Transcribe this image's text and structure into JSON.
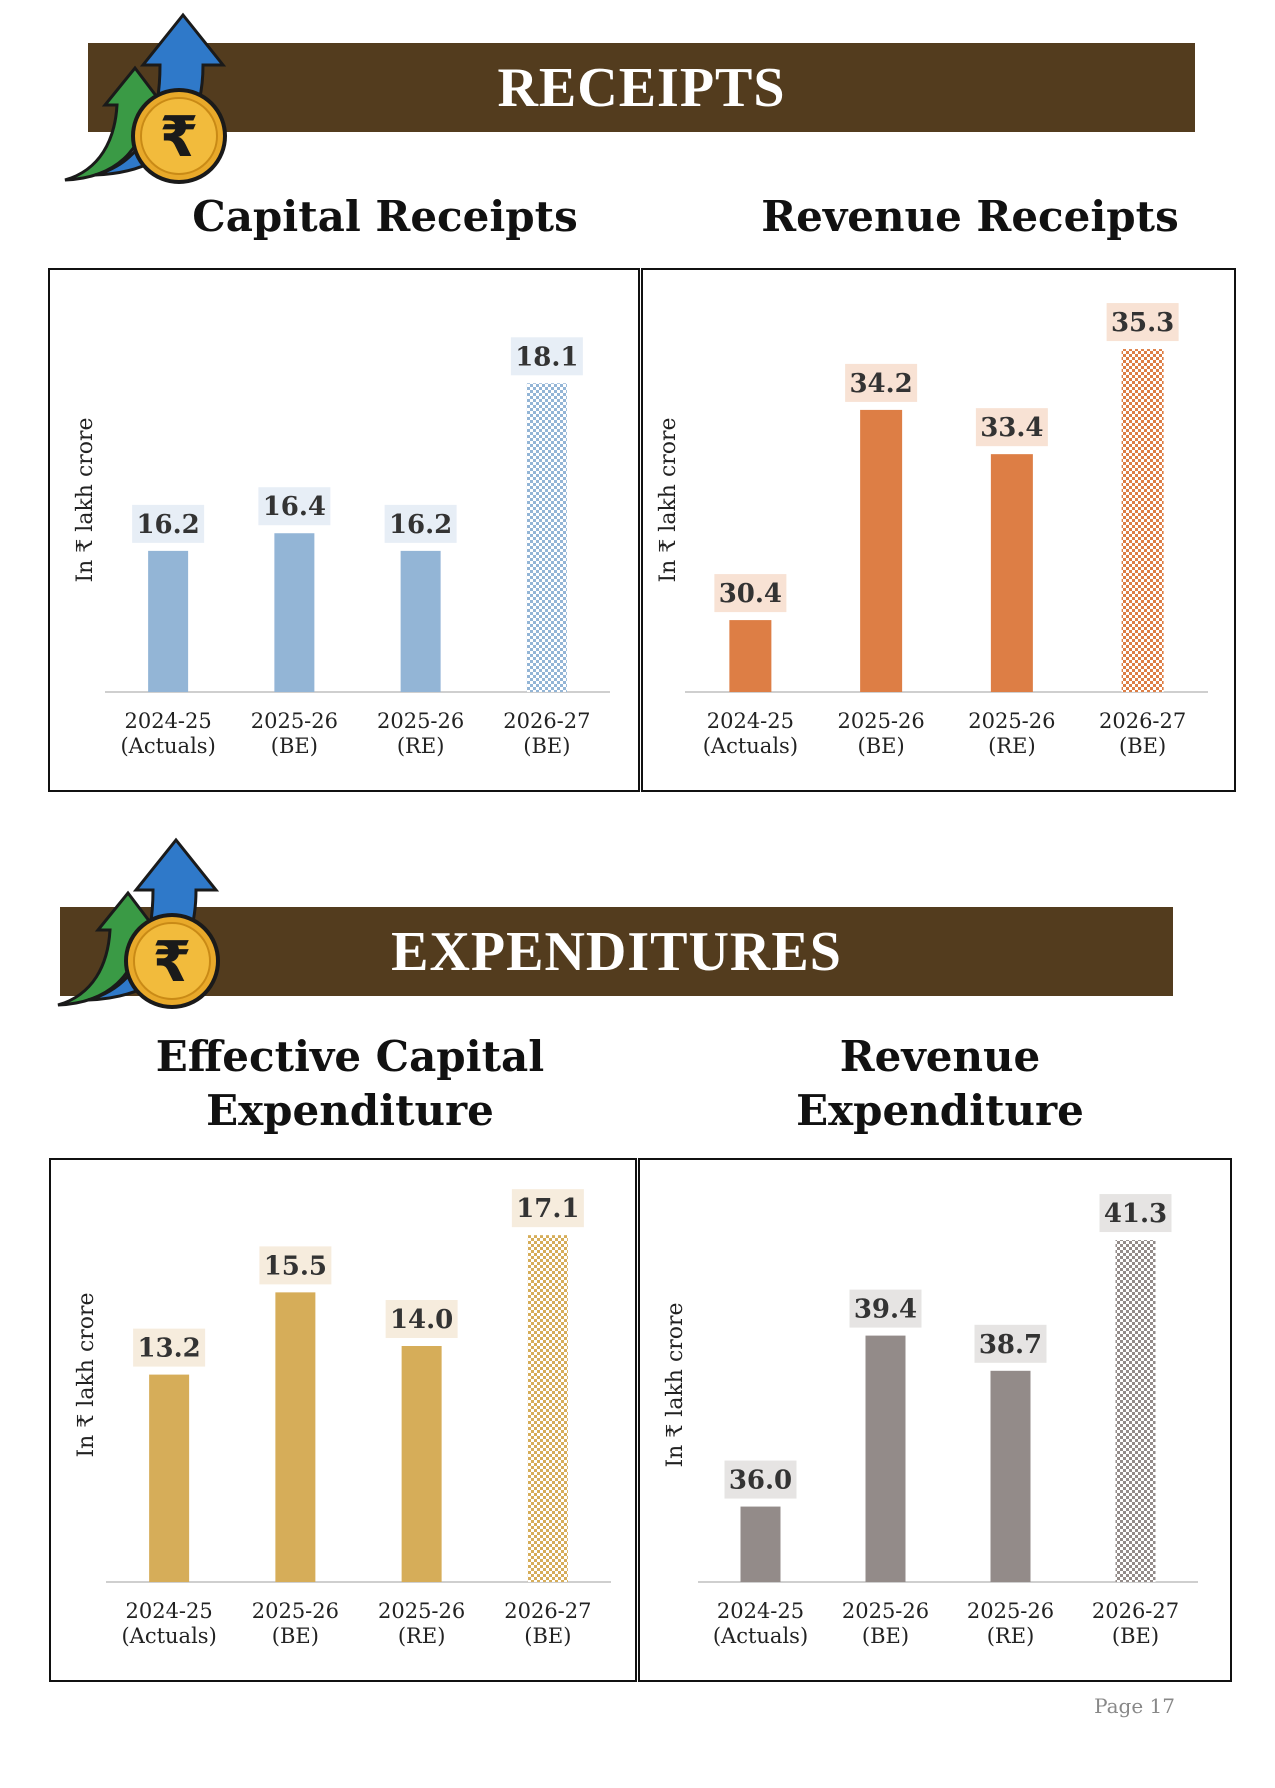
{
  "sections": {
    "receipts_title": "RECEIPTS",
    "expenditures_title": "EXPENDITURES"
  },
  "footer": {
    "page_label": "Page",
    "page_number": "17"
  },
  "icons": [
    "rupee-coin-icon",
    "arrow-up-icon"
  ],
  "colors": {
    "banner": "#533c1e",
    "coin": "#e8a92a",
    "arrow_blue": "#2f79c9",
    "arrow_green": "#3a9a45"
  },
  "chart_data": [
    {
      "type": "bar",
      "title": "Capital Receipts",
      "ylabel": "In ₹ lakh crore",
      "categories": [
        [
          "2024-25",
          "(Actuals)"
        ],
        [
          "2025-26",
          "(BE)"
        ],
        [
          "2025-26",
          "(RE)"
        ],
        [
          "2026-27",
          "(BE)"
        ]
      ],
      "values": [
        16.2,
        16.4,
        16.2,
        18.1
      ],
      "value_labels": [
        "16.2",
        "16.4",
        "16.2",
        "18.1"
      ],
      "color": "#93b5d6",
      "label_bg": "#e7eef6",
      "last_bar_pattern": "checkered",
      "ylim": [
        14.6,
        18.5
      ]
    },
    {
      "type": "bar",
      "title": "Revenue Receipts",
      "ylabel": "In ₹ lakh crore",
      "categories": [
        [
          "2024-25",
          "(Actuals)"
        ],
        [
          "2025-26",
          "(BE)"
        ],
        [
          "2025-26",
          "(RE)"
        ],
        [
          "2026-27",
          "(BE)"
        ]
      ],
      "values": [
        30.4,
        34.2,
        33.4,
        35.3
      ],
      "value_labels": [
        "30.4",
        "34.2",
        "33.4",
        "35.3"
      ],
      "color": "#dd7e45",
      "label_bg": "#f8e2d4",
      "last_bar_pattern": "checkered",
      "ylim": [
        29.1,
        35.5
      ]
    },
    {
      "type": "bar",
      "title": "Effective Capital Expenditure",
      "ylabel": "In ₹ lakh crore",
      "categories": [
        [
          "2024-25",
          "(Actuals)"
        ],
        [
          "2025-26",
          "(BE)"
        ],
        [
          "2025-26",
          "(RE)"
        ],
        [
          "2026-27",
          "(BE)"
        ]
      ],
      "values": [
        13.2,
        15.5,
        14.0,
        17.1
      ],
      "value_labels": [
        "13.2",
        "15.5",
        "14.0",
        "17.1"
      ],
      "color": "#d6ad59",
      "label_bg": "#f6ecdd",
      "last_bar_pattern": "checkered",
      "ylim": [
        7.4,
        17.3
      ]
    },
    {
      "type": "bar",
      "title": "Revenue Expenditure",
      "ylabel": "In ₹ lakh crore",
      "categories": [
        [
          "2024-25",
          "(Actuals)"
        ],
        [
          "2025-26",
          "(BE)"
        ],
        [
          "2025-26",
          "(RE)"
        ],
        [
          "2026-27",
          "(BE)"
        ]
      ],
      "values": [
        36.0,
        39.4,
        38.7,
        41.3
      ],
      "value_labels": [
        "36.0",
        "39.4",
        "38.7",
        "41.3"
      ],
      "color": "#938b89",
      "label_bg": "#e6e4e3",
      "last_bar_pattern": "checkered",
      "ylim": [
        34.5,
        41.5
      ]
    }
  ]
}
